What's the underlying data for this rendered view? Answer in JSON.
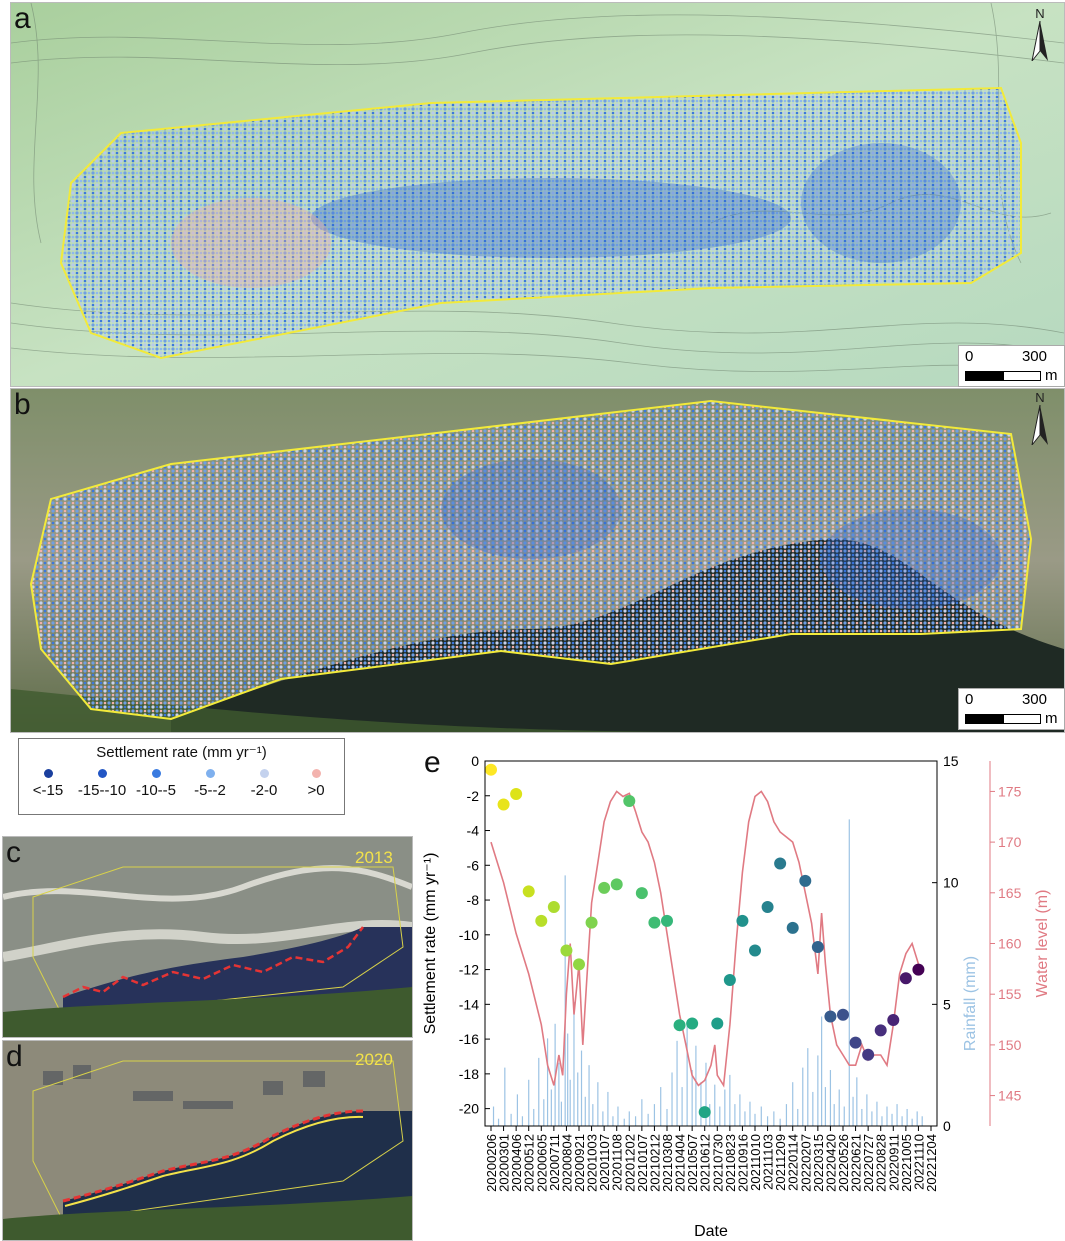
{
  "panels": {
    "a": {
      "label": "a"
    },
    "b": {
      "label": "b"
    },
    "c": {
      "label": "c",
      "year": "2013"
    },
    "d": {
      "label": "d",
      "year": "2020"
    },
    "e": {
      "label": "e"
    }
  },
  "scale_bar": {
    "left": "0",
    "right": "300",
    "unit": "m"
  },
  "north_label": "N",
  "legend": {
    "title": "Settlement rate (mm yr⁻¹)",
    "items": [
      {
        "label": "<-15",
        "color": "#1a3f9e"
      },
      {
        "label": "-15--10",
        "color": "#2256c4"
      },
      {
        "label": "-10--5",
        "color": "#3a7be0"
      },
      {
        "label": "-5--2",
        "color": "#7fb0ee"
      },
      {
        "label": "-2-0",
        "color": "#c4d2ee"
      },
      {
        "label": ">0",
        "color": "#f3b3ae"
      }
    ]
  },
  "chart_data": {
    "type": "scatter",
    "xlabel": "Date",
    "ylabel": "Settlement rate (mm yr⁻¹)",
    "y2label": "Rainfall (mm)",
    "y3label": "Water level (m)",
    "ylim": [
      -21,
      0
    ],
    "y2lim": [
      0,
      15
    ],
    "y3lim": [
      142,
      178
    ],
    "yticks": [
      0,
      -2,
      -4,
      -6,
      -8,
      -10,
      -12,
      -14,
      -16,
      -18,
      -20
    ],
    "y2ticks": [
      0,
      5,
      10,
      15
    ],
    "y3ticks": [
      145,
      150,
      155,
      160,
      165,
      170,
      175
    ],
    "xticks": [
      "20200206",
      "20200301",
      "20200406",
      "20200512",
      "20200605",
      "20200711",
      "20200804",
      "20200921",
      "20201003",
      "20201107",
      "20201108",
      "20201202",
      "20210107",
      "20210212",
      "20210308",
      "20210404",
      "20210507",
      "20210612",
      "20210730",
      "20210823",
      "20210916",
      "20211010",
      "20211103",
      "20211209",
      "20220114",
      "20220207",
      "20220315",
      "20220420",
      "20220526",
      "20220621",
      "20220727",
      "20220828",
      "20220911",
      "20221005",
      "20221110",
      "20221204"
    ],
    "colors": {
      "rainfall": "#9cc3e4",
      "water_level": "#e07a83"
    },
    "series": [
      {
        "name": "Settlement rate",
        "points": [
          {
            "x": 0,
            "y": -0.5,
            "color": "#fde725"
          },
          {
            "x": 1,
            "y": -2.5,
            "color": "#e8e41a"
          },
          {
            "x": 2,
            "y": -1.9,
            "color": "#dde318"
          },
          {
            "x": 3,
            "y": -7.5,
            "color": "#c8e020"
          },
          {
            "x": 4,
            "y": -9.2,
            "color": "#b8de29"
          },
          {
            "x": 5,
            "y": -8.4,
            "color": "#addc30"
          },
          {
            "x": 6,
            "y": -10.9,
            "color": "#9cd93b"
          },
          {
            "x": 7,
            "y": -11.7,
            "color": "#90d743"
          },
          {
            "x": 8,
            "y": -9.3,
            "color": "#7fd34e"
          },
          {
            "x": 9,
            "y": -7.3,
            "color": "#6ccd5a"
          },
          {
            "x": 10,
            "y": -7.1,
            "color": "#5ec962"
          },
          {
            "x": 11,
            "y": -2.3,
            "color": "#52c569"
          },
          {
            "x": 12,
            "y": -7.6,
            "color": "#4ac16d"
          },
          {
            "x": 13,
            "y": -9.3,
            "color": "#3fbc73"
          },
          {
            "x": 14,
            "y": -9.2,
            "color": "#35b779"
          },
          {
            "x": 15,
            "y": -15.2,
            "color": "#2ab07f"
          },
          {
            "x": 16,
            "y": -15.1,
            "color": "#25ab82"
          },
          {
            "x": 17,
            "y": -20.2,
            "color": "#21a585"
          },
          {
            "x": 18,
            "y": -15.1,
            "color": "#1f9e89"
          },
          {
            "x": 19,
            "y": -12.6,
            "color": "#1f978b"
          },
          {
            "x": 20,
            "y": -9.2,
            "color": "#21918c"
          },
          {
            "x": 21,
            "y": -10.9,
            "color": "#238a8d"
          },
          {
            "x": 22,
            "y": -8.4,
            "color": "#26828e"
          },
          {
            "x": 23,
            "y": -5.9,
            "color": "#297a8e"
          },
          {
            "x": 24,
            "y": -9.6,
            "color": "#2c728e"
          },
          {
            "x": 25,
            "y": -6.9,
            "color": "#2f6b8e"
          },
          {
            "x": 26,
            "y": -10.7,
            "color": "#33638d"
          },
          {
            "x": 27,
            "y": -14.7,
            "color": "#375b8d"
          },
          {
            "x": 28,
            "y": -14.6,
            "color": "#3b528b"
          },
          {
            "x": 29,
            "y": -16.2,
            "color": "#404688"
          },
          {
            "x": 30,
            "y": -16.9,
            "color": "#443b84"
          },
          {
            "x": 31,
            "y": -15.5,
            "color": "#472f7d"
          },
          {
            "x": 32,
            "y": -14.9,
            "color": "#482475"
          },
          {
            "x": 33,
            "y": -12.5,
            "color": "#47186a"
          },
          {
            "x": 34,
            "y": -12.0,
            "color": "#440154"
          }
        ]
      },
      {
        "name": "Water level",
        "points": [
          [
            0,
            170
          ],
          [
            1,
            166
          ],
          [
            2,
            161
          ],
          [
            3,
            157
          ],
          [
            4,
            152
          ],
          [
            4.5,
            148
          ],
          [
            5,
            146
          ],
          [
            5.4,
            149
          ],
          [
            5.7,
            147
          ],
          [
            6,
            155
          ],
          [
            6.3,
            160
          ],
          [
            6.6,
            153
          ],
          [
            7,
            158
          ],
          [
            7.3,
            150
          ],
          [
            7.6,
            156
          ],
          [
            8,
            164
          ],
          [
            8.5,
            168
          ],
          [
            9,
            172
          ],
          [
            9.5,
            174
          ],
          [
            10,
            175
          ],
          [
            10.5,
            174.5
          ],
          [
            11,
            174.8
          ],
          [
            11.5,
            173
          ],
          [
            12,
            171
          ],
          [
            12.5,
            170
          ],
          [
            13,
            168
          ],
          [
            13.5,
            165
          ],
          [
            14,
            161
          ],
          [
            14.5,
            157
          ],
          [
            15,
            153
          ],
          [
            15.5,
            150
          ],
          [
            16,
            147
          ],
          [
            16.5,
            146
          ],
          [
            17,
            146.5
          ],
          [
            17.5,
            148
          ],
          [
            17.8,
            150
          ],
          [
            18,
            147
          ],
          [
            18.5,
            146
          ],
          [
            19,
            152
          ],
          [
            19.5,
            160
          ],
          [
            20,
            167
          ],
          [
            20.5,
            172
          ],
          [
            21,
            174.5
          ],
          [
            21.5,
            175
          ],
          [
            22,
            174
          ],
          [
            22.5,
            172
          ],
          [
            23,
            171
          ],
          [
            23.5,
            170.5
          ],
          [
            24,
            170
          ],
          [
            24.5,
            168
          ],
          [
            25,
            165
          ],
          [
            25.5,
            162
          ],
          [
            26,
            157
          ],
          [
            26.3,
            163
          ],
          [
            26.6,
            158
          ],
          [
            27,
            153
          ],
          [
            27.5,
            150
          ],
          [
            28,
            149
          ],
          [
            28.5,
            148
          ],
          [
            29,
            148
          ],
          [
            29.5,
            150
          ],
          [
            30,
            148.5
          ],
          [
            30.5,
            149
          ],
          [
            31,
            149
          ],
          [
            31.5,
            148
          ],
          [
            32,
            152
          ],
          [
            32.5,
            157
          ],
          [
            33,
            159
          ],
          [
            33.5,
            160
          ],
          [
            34,
            158
          ]
        ]
      },
      {
        "name": "Rainfall",
        "points": [
          [
            0.2,
            0.8
          ],
          [
            0.6,
            0.3
          ],
          [
            1.1,
            2.4
          ],
          [
            1.6,
            0.5
          ],
          [
            2.1,
            1.3
          ],
          [
            2.5,
            0.4
          ],
          [
            3.0,
            1.9
          ],
          [
            3.4,
            0.7
          ],
          [
            3.8,
            2.8
          ],
          [
            4.2,
            1.1
          ],
          [
            4.5,
            3.6
          ],
          [
            4.8,
            1.5
          ],
          [
            5.1,
            4.2
          ],
          [
            5.4,
            2.6
          ],
          [
            5.6,
            1.0
          ],
          [
            5.9,
            10.3
          ],
          [
            6.1,
            3.8
          ],
          [
            6.3,
            1.9
          ],
          [
            6.6,
            5.1
          ],
          [
            6.9,
            2.2
          ],
          [
            7.2,
            3.1
          ],
          [
            7.5,
            1.2
          ],
          [
            7.8,
            2.5
          ],
          [
            8.1,
            0.9
          ],
          [
            8.5,
            1.8
          ],
          [
            8.9,
            0.6
          ],
          [
            9.3,
            1.4
          ],
          [
            9.7,
            0.4
          ],
          [
            10.1,
            0.8
          ],
          [
            10.6,
            0.3
          ],
          [
            11.0,
            0.6
          ],
          [
            11.5,
            0.4
          ],
          [
            12.0,
            1.1
          ],
          [
            12.5,
            0.5
          ],
          [
            13.0,
            0.9
          ],
          [
            13.5,
            1.6
          ],
          [
            14.0,
            0.7
          ],
          [
            14.4,
            2.2
          ],
          [
            14.8,
            3.5
          ],
          [
            15.2,
            1.6
          ],
          [
            15.6,
            4.1
          ],
          [
            16.0,
            2.3
          ],
          [
            16.3,
            3.3
          ],
          [
            16.7,
            1.8
          ],
          [
            17.1,
            2.6
          ],
          [
            17.4,
            0.9
          ],
          [
            17.8,
            1.7
          ],
          [
            18.2,
            0.8
          ],
          [
            18.6,
            1.5
          ],
          [
            19.0,
            2.1
          ],
          [
            19.4,
            0.9
          ],
          [
            19.8,
            1.3
          ],
          [
            20.2,
            0.6
          ],
          [
            20.6,
            1.0
          ],
          [
            21.0,
            0.5
          ],
          [
            21.5,
            0.8
          ],
          [
            22.0,
            0.4
          ],
          [
            22.5,
            0.6
          ],
          [
            23.0,
            0.3
          ],
          [
            23.5,
            0.9
          ],
          [
            24.0,
            1.8
          ],
          [
            24.4,
            0.7
          ],
          [
            24.8,
            2.4
          ],
          [
            25.2,
            3.2
          ],
          [
            25.6,
            1.4
          ],
          [
            26.0,
            2.9
          ],
          [
            26.3,
            4.5
          ],
          [
            26.6,
            1.6
          ],
          [
            27.0,
            2.3
          ],
          [
            27.3,
            0.9
          ],
          [
            27.7,
            1.5
          ],
          [
            28.1,
            0.8
          ],
          [
            28.5,
            12.6
          ],
          [
            28.8,
            1.2
          ],
          [
            29.1,
            2.0
          ],
          [
            29.5,
            0.7
          ],
          [
            29.9,
            1.3
          ],
          [
            30.3,
            0.6
          ],
          [
            30.7,
            1.0
          ],
          [
            31.1,
            0.4
          ],
          [
            31.5,
            0.8
          ],
          [
            31.9,
            0.5
          ],
          [
            32.3,
            0.9
          ],
          [
            32.7,
            0.4
          ],
          [
            33.1,
            0.7
          ],
          [
            33.5,
            0.3
          ],
          [
            33.9,
            0.6
          ],
          [
            34.3,
            0.4
          ]
        ]
      }
    ]
  }
}
